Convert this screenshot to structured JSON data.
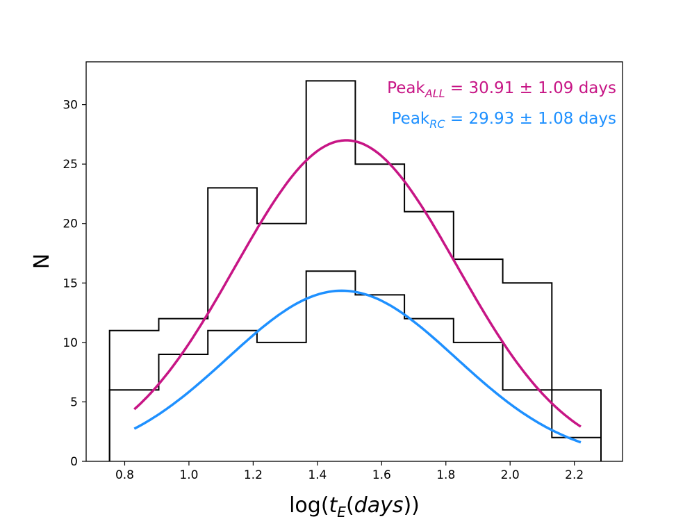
{
  "chart_data": {
    "type": "histogram",
    "xlabel": "log(",
    "xlabel_var": "t",
    "xlabel_sub": "E",
    "xlabel_mid": "(",
    "xlabel_italic": "days",
    "xlabel_end": "))",
    "ylabel": "N",
    "xlim": [
      0.68,
      2.35
    ],
    "ylim": [
      0,
      33.6
    ],
    "xticks": [
      0.8,
      1.0,
      1.2,
      1.4,
      1.6,
      1.8,
      2.0,
      2.2
    ],
    "xtick_labels": [
      "0.8",
      "1.0",
      "1.2",
      "1.4",
      "1.6",
      "1.8",
      "2.0",
      "2.2"
    ],
    "yticks": [
      0,
      5,
      10,
      15,
      20,
      25,
      30
    ],
    "ytick_labels": [
      "0",
      "5",
      "10",
      "15",
      "20",
      "25",
      "30"
    ],
    "bin_edges": [
      0.753,
      0.906,
      1.059,
      1.212,
      1.365,
      1.518,
      1.671,
      1.824,
      1.977,
      2.13,
      2.283
    ],
    "series": [
      {
        "name": "ALL",
        "kind": "histogram",
        "counts": [
          11,
          12,
          23,
          20,
          32,
          25,
          21,
          17,
          15,
          2
        ],
        "color": "#000000"
      },
      {
        "name": "RC",
        "kind": "histogram",
        "counts": [
          6,
          9,
          11,
          10,
          16,
          14,
          12,
          10,
          6,
          6
        ],
        "color": "#000000"
      }
    ],
    "fits": [
      {
        "name": "ALL",
        "kind": "gaussian",
        "amplitude": 27.0,
        "mean": 1.49,
        "sigma": 0.346,
        "x_range": [
          0.83,
          2.22
        ],
        "color": "#c71585"
      },
      {
        "name": "RC",
        "kind": "gaussian",
        "amplitude": 14.35,
        "mean": 1.476,
        "sigma": 0.355,
        "x_range": [
          0.83,
          2.22
        ],
        "color": "#1e90ff"
      }
    ],
    "annotations": [
      {
        "id": "all",
        "prefix": "Peak",
        "sub": "ALL",
        "text": " = 30.91 ± 1.09 days",
        "color": "#c71585"
      },
      {
        "id": "rc",
        "prefix": "Peak",
        "sub": "RC",
        "text": " = 29.93 ± 1.08 days",
        "color": "#1e90ff"
      }
    ]
  }
}
